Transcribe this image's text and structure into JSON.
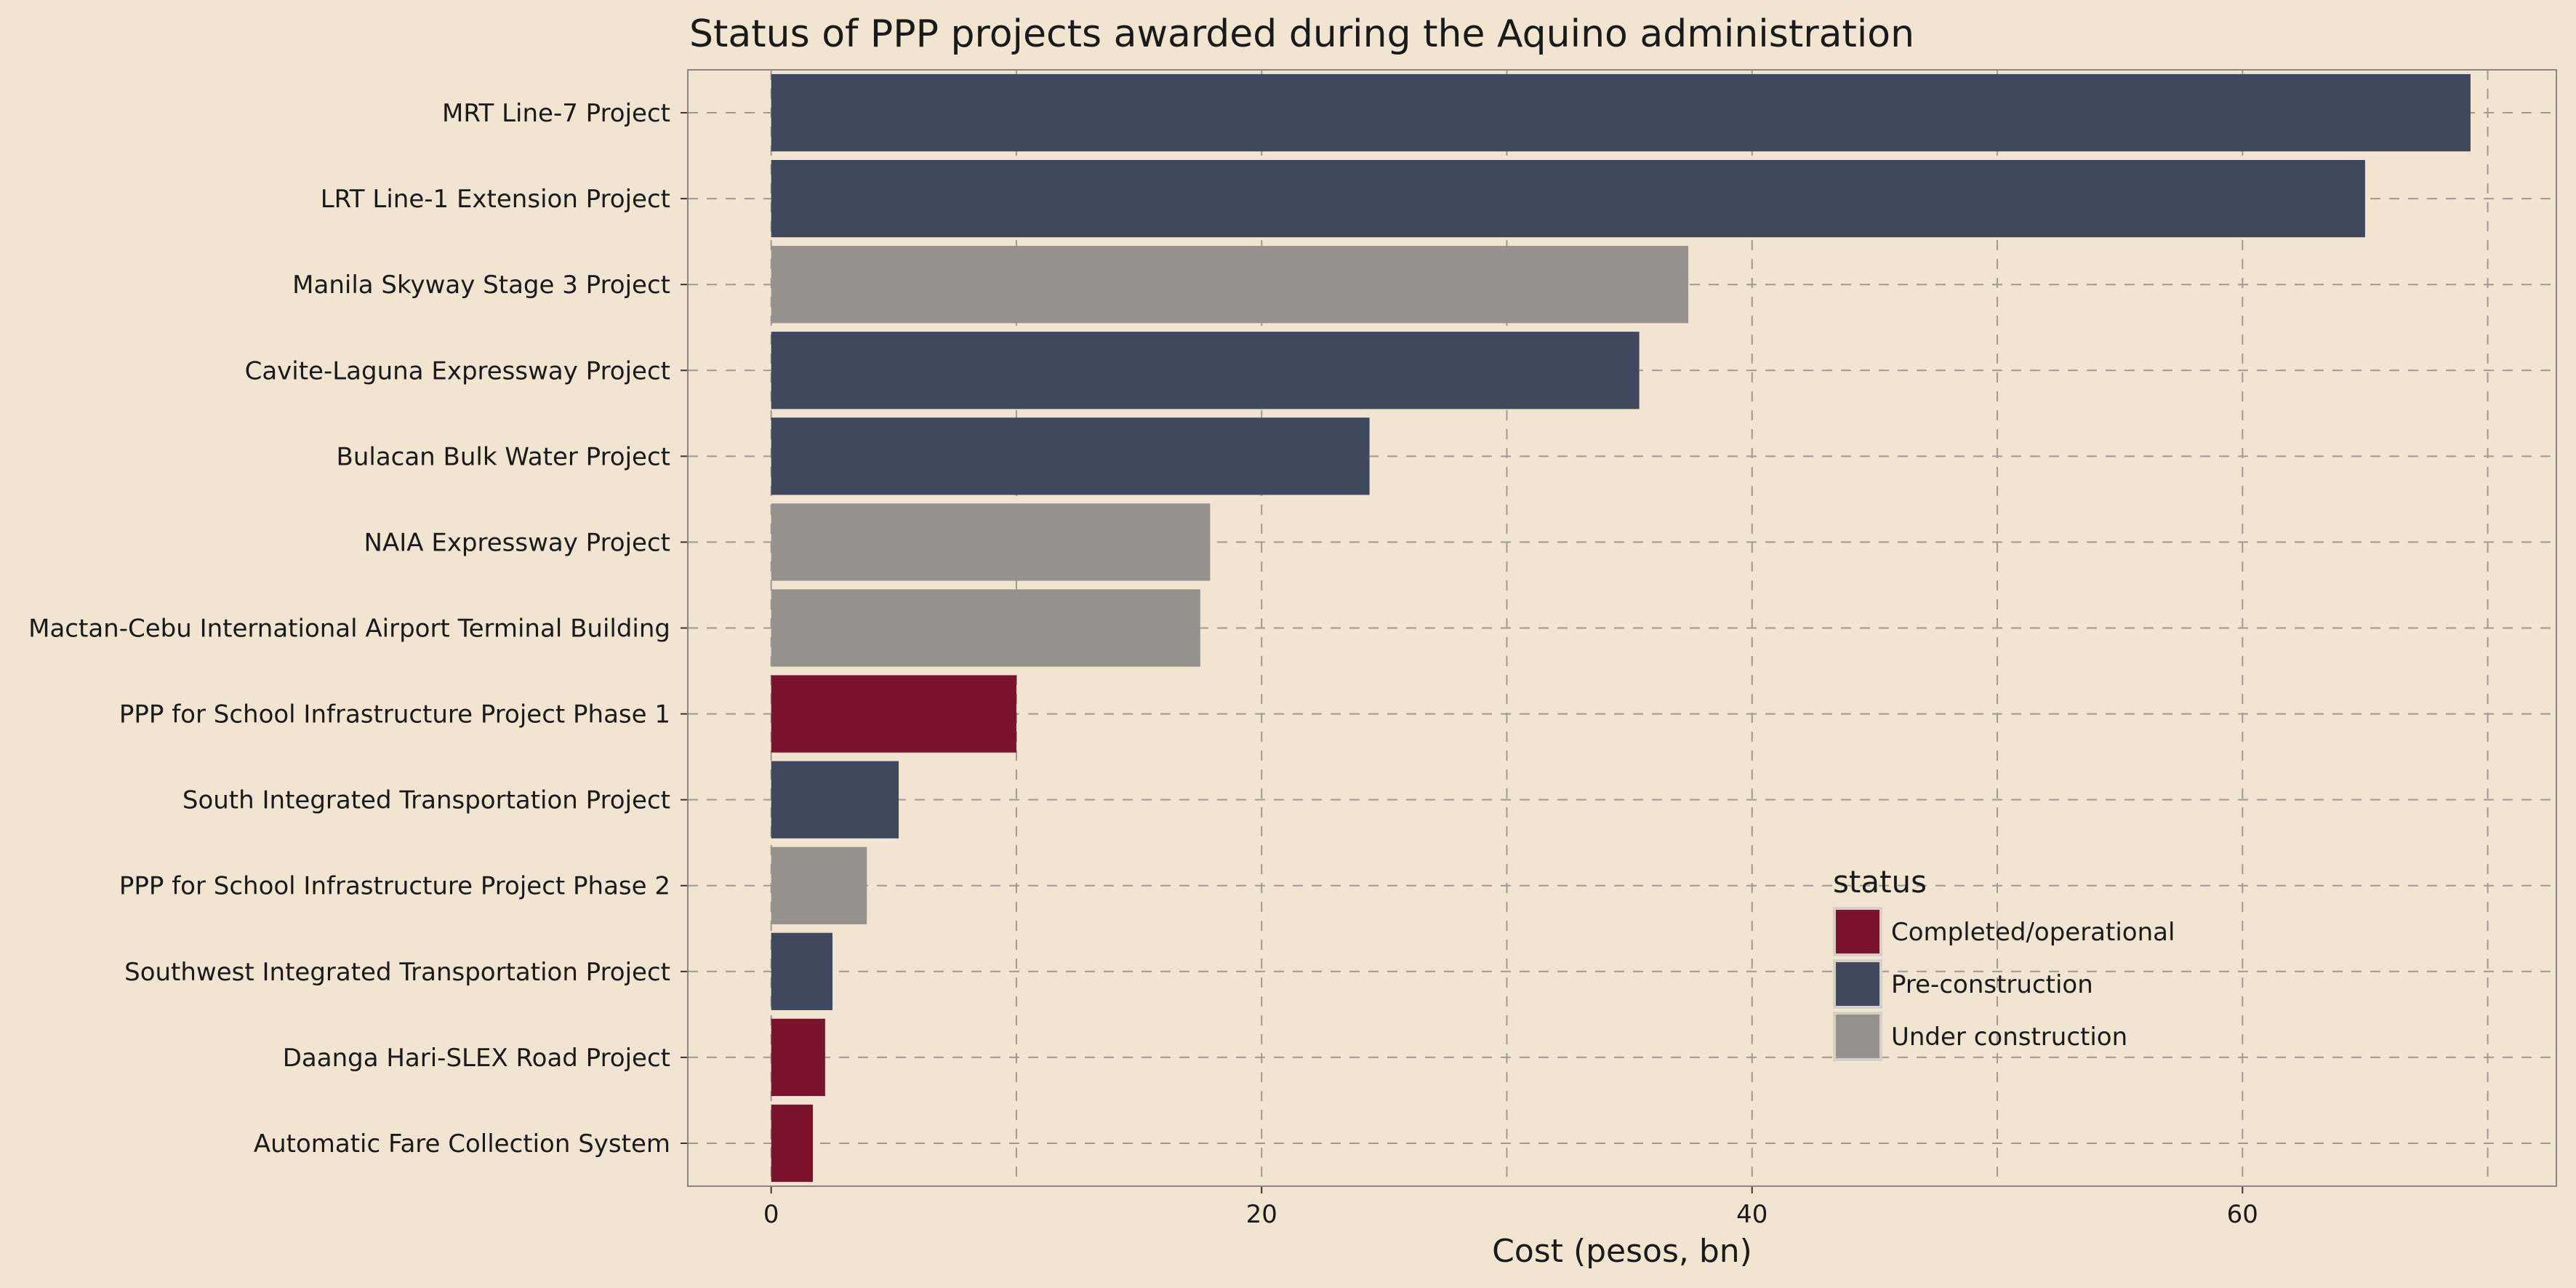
{
  "chart_data": {
    "type": "bar",
    "orientation": "horizontal",
    "title": "Status of PPP projects awarded during the Aquino administration",
    "xlabel": "Cost (pesos, bn)",
    "ylabel": "",
    "xlim": [
      -3.4,
      72.8
    ],
    "x_ticks": [
      0,
      20,
      40,
      60
    ],
    "grid": true,
    "categories": [
      "MRT Line-7 Project",
      "LRT Line-1 Extension Project",
      "Manila Skyway Stage 3 Project",
      "Cavite-Laguna Expressway Project",
      "Bulacan Bulk Water Project",
      "NAIA Expressway Project",
      "Mactan-Cebu International Airport Terminal Building",
      "PPP for School Infrastructure Project Phase 1",
      "South Integrated Transportation Project",
      "PPP for School Infrastructure Project Phase 2",
      "Southwest Integrated Transportation Project",
      "Daanga Hari-SLEX Road Project",
      "Automatic Fare Collection System"
    ],
    "values": [
      69.3,
      65.0,
      37.4,
      35.4,
      24.4,
      17.9,
      17.5,
      10.0,
      5.2,
      3.9,
      2.5,
      2.2,
      1.7
    ],
    "status": [
      "Pre-construction",
      "Pre-construction",
      "Under construction",
      "Pre-construction",
      "Pre-construction",
      "Under construction",
      "Under construction",
      "Completed/operational",
      "Pre-construction",
      "Under construction",
      "Pre-construction",
      "Completed/operational",
      "Completed/operational"
    ],
    "legend": {
      "title": "status",
      "position": "bottom-right-inside",
      "entries": [
        {
          "label": "Completed/operational",
          "color": "#7a132b"
        },
        {
          "label": "Pre-construction",
          "color": "#40485e"
        },
        {
          "label": "Under construction",
          "color": "#95918d"
        }
      ]
    },
    "colors": {
      "background": "#f1e4d0",
      "grid": "#a09a92",
      "frame": "#8a857f"
    }
  }
}
